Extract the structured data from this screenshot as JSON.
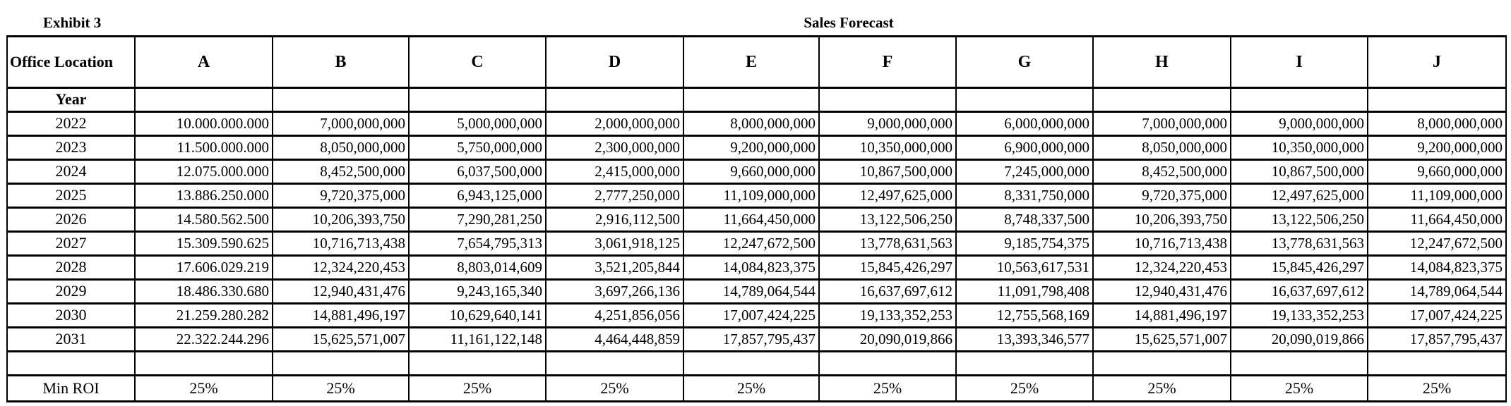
{
  "page": {
    "exhibit_label": "Exhibit 3",
    "title": "Sales Forecast"
  },
  "table": {
    "corner_header": "Office Location",
    "location_columns": [
      "A",
      "B",
      "C",
      "D",
      "E",
      "F",
      "G",
      "H",
      "I",
      "J"
    ],
    "year_label": "Year",
    "rows": [
      {
        "year": "2022",
        "values": [
          "10.000.000.000",
          "7,000,000,000",
          "5,000,000,000",
          "2,000,000,000",
          "8,000,000,000",
          "9,000,000,000",
          "6,000,000,000",
          "7,000,000,000",
          "9,000,000,000",
          "8,000,000,000"
        ]
      },
      {
        "year": "2023",
        "values": [
          "11.500.000.000",
          "8,050,000,000",
          "5,750,000,000",
          "2,300,000,000",
          "9,200,000,000",
          "10,350,000,000",
          "6,900,000,000",
          "8,050,000,000",
          "10,350,000,000",
          "9,200,000,000"
        ]
      },
      {
        "year": "2024",
        "values": [
          "12.075.000.000",
          "8,452,500,000",
          "6,037,500,000",
          "2,415,000,000",
          "9,660,000,000",
          "10,867,500,000",
          "7,245,000,000",
          "8,452,500,000",
          "10,867,500,000",
          "9,660,000,000"
        ]
      },
      {
        "year": "2025",
        "values": [
          "13.886.250.000",
          "9,720,375,000",
          "6,943,125,000",
          "2,777,250,000",
          "11,109,000,000",
          "12,497,625,000",
          "8,331,750,000",
          "9,720,375,000",
          "12,497,625,000",
          "11,109,000,000"
        ]
      },
      {
        "year": "2026",
        "values": [
          "14.580.562.500",
          "10,206,393,750",
          "7,290,281,250",
          "2,916,112,500",
          "11,664,450,000",
          "13,122,506,250",
          "8,748,337,500",
          "10,206,393,750",
          "13,122,506,250",
          "11,664,450,000"
        ]
      },
      {
        "year": "2027",
        "values": [
          "15.309.590.625",
          "10,716,713,438",
          "7,654,795,313",
          "3,061,918,125",
          "12,247,672,500",
          "13,778,631,563",
          "9,185,754,375",
          "10,716,713,438",
          "13,778,631,563",
          "12,247,672,500"
        ]
      },
      {
        "year": "2028",
        "values": [
          "17.606.029.219",
          "12,324,220,453",
          "8,803,014,609",
          "3,521,205,844",
          "14,084,823,375",
          "15,845,426,297",
          "10,563,617,531",
          "12,324,220,453",
          "15,845,426,297",
          "14,084,823,375"
        ]
      },
      {
        "year": "2029",
        "values": [
          "18.486.330.680",
          "12,940,431,476",
          "9,243,165,340",
          "3,697,266,136",
          "14,789,064,544",
          "16,637,697,612",
          "11,091,798,408",
          "12,940,431,476",
          "16,637,697,612",
          "14,789,064,544"
        ]
      },
      {
        "year": "2030",
        "values": [
          "21.259.280.282",
          "14,881,496,197",
          "10,629,640,141",
          "4,251,856,056",
          "17,007,424,225",
          "19,133,352,253",
          "12,755,568,169",
          "14,881,496,197",
          "19,133,352,253",
          "17,007,424,225"
        ]
      },
      {
        "year": "2031",
        "values": [
          "22.322.244.296",
          "15,625,571,007",
          "11,161,122,148",
          "4,464,448,859",
          "17,857,795,437",
          "20,090,019,866",
          "13,393,346,577",
          "15,625,571,007",
          "20,090,019,866",
          "17,857,795,437"
        ]
      }
    ],
    "min_roi": {
      "label": "Min ROI",
      "values": [
        "25%",
        "25%",
        "25%",
        "25%",
        "25%",
        "25%",
        "25%",
        "25%",
        "25%",
        "25%"
      ]
    }
  },
  "colors": {
    "border": "#000000",
    "background": "#ffffff",
    "text": "#000000"
  }
}
